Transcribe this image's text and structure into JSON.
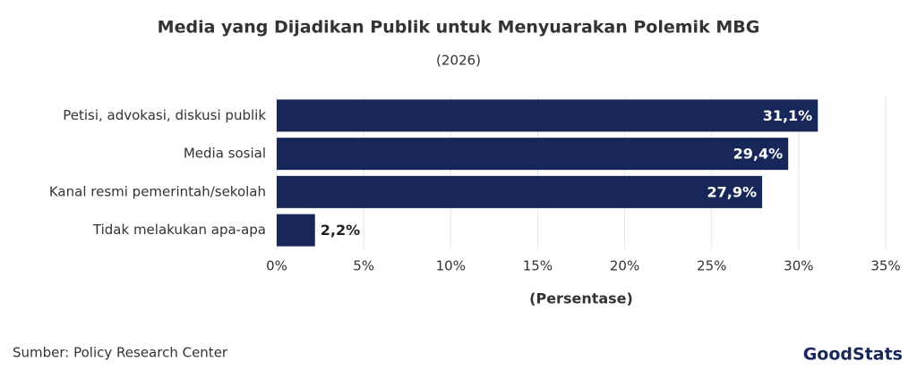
{
  "chart_data": {
    "type": "bar",
    "orientation": "horizontal",
    "title": "Media yang Dijadikan Publik untuk Menyuarakan Polemik MBG",
    "subtitle": "(2026)",
    "categories": [
      "Petisi, advokasi, diskusi publik",
      "Media sosial",
      "Kanal resmi pemerintah/sekolah",
      "Tidak melakukan apa-apa"
    ],
    "values": [
      31.1,
      29.4,
      27.9,
      2.2
    ],
    "value_labels": [
      "31,1%",
      "29,4%",
      "27,9%",
      "2,2%"
    ],
    "color": "#17275a",
    "xlim": [
      0,
      35
    ],
    "xticks": [
      {
        "value": 0,
        "label": "0%"
      },
      {
        "value": 5,
        "label": "5%"
      },
      {
        "value": 10,
        "label": "10%"
      },
      {
        "value": 15,
        "label": "15%"
      },
      {
        "value": 20,
        "label": "20%"
      },
      {
        "value": 25,
        "label": "25%"
      },
      {
        "value": 30,
        "label": "30%"
      },
      {
        "value": 35,
        "label": "35%"
      }
    ],
    "xlabel": "(Persentase)",
    "grid": true,
    "source": "Sumber: Policy Research Center",
    "logo": "GoodStats"
  }
}
